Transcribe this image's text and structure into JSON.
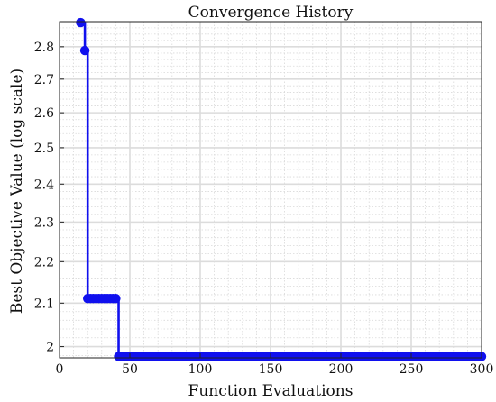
{
  "chart_data": {
    "type": "line",
    "title": "Convergence History",
    "xlabel": "Function Evaluations",
    "ylabel": "Best Objective Value (log scale)",
    "x_scale": "linear",
    "y_scale": "log",
    "xlim": [
      0,
      300
    ],
    "ylim": [
      1.975,
      2.88
    ],
    "x_ticks": [
      "0",
      "50",
      "100",
      "150",
      "200",
      "250",
      "300"
    ],
    "y_ticks": [
      "2",
      "2.1",
      "2.2",
      "2.3",
      "2.4",
      "2.5",
      "2.6",
      "2.7",
      "2.8"
    ],
    "grid": true,
    "legend": false,
    "color": "#1010EE",
    "series": [
      {
        "x": [
          15,
          18,
          20,
          22,
          24,
          26,
          28,
          30,
          32,
          34,
          36,
          38,
          40,
          42,
          300
        ],
        "y": [
          2.877,
          2.788,
          2.111,
          2.111,
          2.111,
          2.111,
          2.111,
          2.111,
          2.111,
          2.111,
          2.111,
          2.111,
          2.111,
          1.978,
          1.978
        ],
        "marker_x_range": [
          42,
          300
        ],
        "marker_x_step": 2
      }
    ]
  }
}
